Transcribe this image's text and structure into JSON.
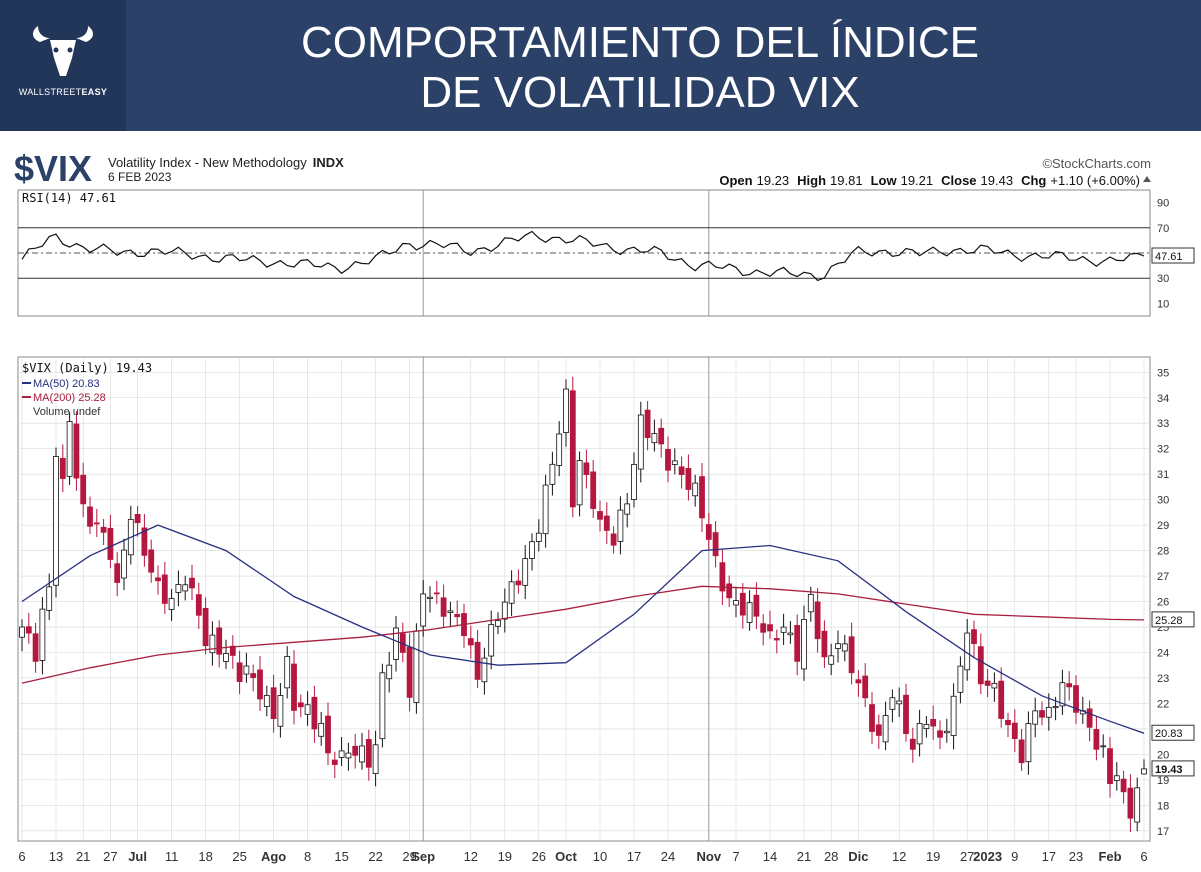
{
  "banner": {
    "title_line1": "COMPORTAMIENTO DEL ÍNDICE",
    "title_line2": "DE VOLATILIDAD VIX",
    "logo_text_light": "WALLSTREET",
    "logo_text_bold": "EASY"
  },
  "header": {
    "symbol": "$VIX",
    "description": "Volatility Index - New Methodology",
    "exchange": "INDX",
    "date": "6 FEB 2023",
    "credit": "©StockCharts.com",
    "quote": {
      "open_label": "Open",
      "open": "19.23",
      "high_label": "High",
      "high": "19.81",
      "low_label": "Low",
      "low": "19.21",
      "close_label": "Close",
      "close": "19.43",
      "chg_label": "Chg",
      "chg": "+1.10 (+6.00%)"
    }
  },
  "colors": {
    "up": "#ffffff",
    "down": "#b5173f",
    "ma50": "#27307f",
    "ma200": "#a8203f",
    "grid": "#d9d9d9",
    "banner": "#2b4168"
  },
  "chart_data": [
    {
      "type": "line",
      "panel": "RSI",
      "legend": "RSI(14) 47.61",
      "last_value_label": "47.61",
      "ylim": [
        0,
        100
      ],
      "yticks": [
        90,
        70,
        50,
        30,
        10
      ],
      "reference_lines": [
        70,
        30
      ],
      "x": [
        "2022-06-06",
        "2022-06-13",
        "2022-06-21",
        "2022-06-27",
        "2022-07-05",
        "2022-07-11",
        "2022-07-18",
        "2022-07-25",
        "2022-08-01",
        "2022-08-08",
        "2022-08-15",
        "2022-08-22",
        "2022-08-29",
        "2022-09-06",
        "2022-09-12",
        "2022-09-19",
        "2022-09-26",
        "2022-10-03",
        "2022-10-10",
        "2022-10-17",
        "2022-10-24",
        "2022-10-31",
        "2022-11-07",
        "2022-11-14",
        "2022-11-21",
        "2022-11-28",
        "2022-12-05",
        "2022-12-12",
        "2022-12-19",
        "2022-12-27",
        "2023-01-03",
        "2023-01-09",
        "2023-01-17",
        "2023-01-23",
        "2023-01-30",
        "2023-02-06"
      ],
      "values": [
        45,
        63,
        54,
        50,
        52,
        49,
        47,
        44,
        43,
        40,
        39,
        44,
        58,
        56,
        52,
        57,
        65,
        60,
        57,
        52,
        50,
        40,
        38,
        35,
        33,
        33,
        50,
        52,
        49,
        53,
        52,
        49,
        47,
        46,
        43,
        47.61
      ]
    },
    {
      "type": "candlestick",
      "panel": "Price",
      "legend": [
        "$VIX (Daily) 19.43",
        "MA(50) 20.83",
        "MA(200) 25.28",
        "Volume undef"
      ],
      "ylim": [
        16.6,
        35.6
      ],
      "yticks": [
        35,
        34,
        33,
        32,
        31,
        30,
        29,
        28,
        27,
        26,
        25,
        24,
        23,
        22,
        21,
        20,
        19,
        18,
        17
      ],
      "x_tick_labels": [
        {
          "label": "6",
          "i": 0
        },
        {
          "label": "13",
          "i": 5
        },
        {
          "label": "21",
          "i": 9
        },
        {
          "label": "27",
          "i": 13
        },
        {
          "label": "Jul",
          "i": 17,
          "bold": true
        },
        {
          "label": "11",
          "i": 22
        },
        {
          "label": "18",
          "i": 27
        },
        {
          "label": "25",
          "i": 32
        },
        {
          "label": "Ago",
          "i": 37,
          "bold": true
        },
        {
          "label": "8",
          "i": 42
        },
        {
          "label": "15",
          "i": 47
        },
        {
          "label": "22",
          "i": 52
        },
        {
          "label": "29",
          "i": 57
        },
        {
          "label": "Sep",
          "i": 59,
          "bold": true
        },
        {
          "label": "12",
          "i": 66
        },
        {
          "label": "19",
          "i": 71
        },
        {
          "label": "26",
          "i": 76
        },
        {
          "label": "Oct",
          "i": 80,
          "bold": true
        },
        {
          "label": "10",
          "i": 85
        },
        {
          "label": "17",
          "i": 90
        },
        {
          "label": "24",
          "i": 95
        },
        {
          "label": "Nov",
          "i": 101,
          "bold": true
        },
        {
          "label": "7",
          "i": 105
        },
        {
          "label": "14",
          "i": 110
        },
        {
          "label": "21",
          "i": 115
        },
        {
          "label": "28",
          "i": 119
        },
        {
          "label": "Dic",
          "i": 123,
          "bold": true
        },
        {
          "label": "12",
          "i": 129
        },
        {
          "label": "19",
          "i": 134
        },
        {
          "label": "27",
          "i": 139
        },
        {
          "label": "2023",
          "i": 142,
          "bold": true
        },
        {
          "label": "9",
          "i": 146
        },
        {
          "label": "17",
          "i": 151
        },
        {
          "label": "23",
          "i": 155
        },
        {
          "label": "Feb",
          "i": 160,
          "bold": true
        },
        {
          "label": "6",
          "i": 165
        }
      ],
      "x_separators": [
        59,
        101
      ],
      "n_days": 166,
      "close_anchors": [
        [
          0,
          25
        ],
        [
          2,
          24
        ],
        [
          3,
          25.5
        ],
        [
          4,
          26.5
        ],
        [
          5,
          32
        ],
        [
          6,
          30.5
        ],
        [
          7,
          33.2
        ],
        [
          8,
          31
        ],
        [
          9,
          29.5
        ],
        [
          11,
          29
        ],
        [
          13,
          28
        ],
        [
          14,
          26.5
        ],
        [
          16,
          29.5
        ],
        [
          18,
          28
        ],
        [
          20,
          26.5
        ],
        [
          22,
          26
        ],
        [
          24,
          27
        ],
        [
          26,
          25.5
        ],
        [
          27,
          24.5
        ],
        [
          30,
          24
        ],
        [
          32,
          23.2
        ],
        [
          33,
          23.3
        ],
        [
          35,
          22.5
        ],
        [
          37,
          21.5
        ],
        [
          39,
          23.5
        ],
        [
          40,
          22
        ],
        [
          42,
          21.7
        ],
        [
          44,
          21
        ],
        [
          45,
          20
        ],
        [
          47,
          19.8
        ],
        [
          48,
          20.2
        ],
        [
          50,
          20
        ],
        [
          51,
          19.8
        ],
        [
          52,
          20.3
        ],
        [
          53,
          23
        ],
        [
          55,
          24.7
        ],
        [
          56,
          24
        ],
        [
          57,
          22.5
        ],
        [
          59,
          26.5
        ],
        [
          61,
          26
        ],
        [
          63,
          25.5
        ],
        [
          65,
          25
        ],
        [
          67,
          23
        ],
        [
          68,
          24
        ],
        [
          70,
          25.5
        ],
        [
          72,
          26.5
        ],
        [
          74,
          27.5
        ],
        [
          76,
          29
        ],
        [
          78,
          31.5
        ],
        [
          80,
          34
        ],
        [
          81,
          30
        ],
        [
          82,
          31.5
        ],
        [
          84,
          30
        ],
        [
          85,
          29
        ],
        [
          87,
          28.5
        ],
        [
          89,
          30
        ],
        [
          91,
          33
        ],
        [
          93,
          32.5
        ],
        [
          95,
          31.5
        ],
        [
          97,
          31
        ],
        [
          99,
          30.3
        ],
        [
          100,
          29.5
        ],
        [
          102,
          27.5
        ],
        [
          104,
          26
        ],
        [
          106,
          25.8
        ],
        [
          108,
          25.5
        ],
        [
          110,
          24.5
        ],
        [
          112,
          25
        ],
        [
          114,
          24
        ],
        [
          116,
          26.2
        ],
        [
          118,
          23.5
        ],
        [
          120,
          24.5
        ],
        [
          122,
          23.5
        ],
        [
          124,
          22
        ],
        [
          126,
          20.5
        ],
        [
          128,
          22.5
        ],
        [
          130,
          21
        ],
        [
          131,
          20.3
        ],
        [
          133,
          21.5
        ],
        [
          135,
          20.5
        ],
        [
          137,
          22
        ],
        [
          139,
          25
        ],
        [
          141,
          23
        ],
        [
          143,
          22.5
        ],
        [
          145,
          21
        ],
        [
          147,
          20
        ],
        [
          149,
          21.8
        ],
        [
          151,
          21.5
        ],
        [
          153,
          22.8
        ],
        [
          155,
          22
        ],
        [
          157,
          21
        ],
        [
          159,
          20
        ],
        [
          160,
          19
        ],
        [
          161,
          19.3
        ],
        [
          162,
          18.2
        ],
        [
          163,
          17.8
        ],
        [
          165,
          19.43
        ]
      ],
      "ma50": [
        [
          0,
          26
        ],
        [
          10,
          27.8
        ],
        [
          20,
          29
        ],
        [
          30,
          28
        ],
        [
          40,
          26.2
        ],
        [
          50,
          25
        ],
        [
          60,
          23.9
        ],
        [
          70,
          23.5
        ],
        [
          80,
          23.6
        ],
        [
          90,
          25.5
        ],
        [
          100,
          28
        ],
        [
          110,
          28.2
        ],
        [
          120,
          27.6
        ],
        [
          130,
          25.6
        ],
        [
          140,
          23.8
        ],
        [
          150,
          22.3
        ],
        [
          160,
          21.3
        ],
        [
          165,
          20.83
        ]
      ],
      "ma200": [
        [
          0,
          22.8
        ],
        [
          10,
          23.4
        ],
        [
          20,
          23.9
        ],
        [
          30,
          24.2
        ],
        [
          40,
          24.4
        ],
        [
          50,
          24.6
        ],
        [
          60,
          24.9
        ],
        [
          70,
          25.3
        ],
        [
          80,
          25.7
        ],
        [
          90,
          26.2
        ],
        [
          100,
          26.6
        ],
        [
          110,
          26.5
        ],
        [
          120,
          26.3
        ],
        [
          130,
          25.9
        ],
        [
          140,
          25.5
        ],
        [
          150,
          25.4
        ],
        [
          160,
          25.3
        ],
        [
          165,
          25.28
        ]
      ],
      "last_labels": {
        "close": "19.43",
        "ma50": "20.83",
        "ma200": "25.28"
      }
    }
  ]
}
